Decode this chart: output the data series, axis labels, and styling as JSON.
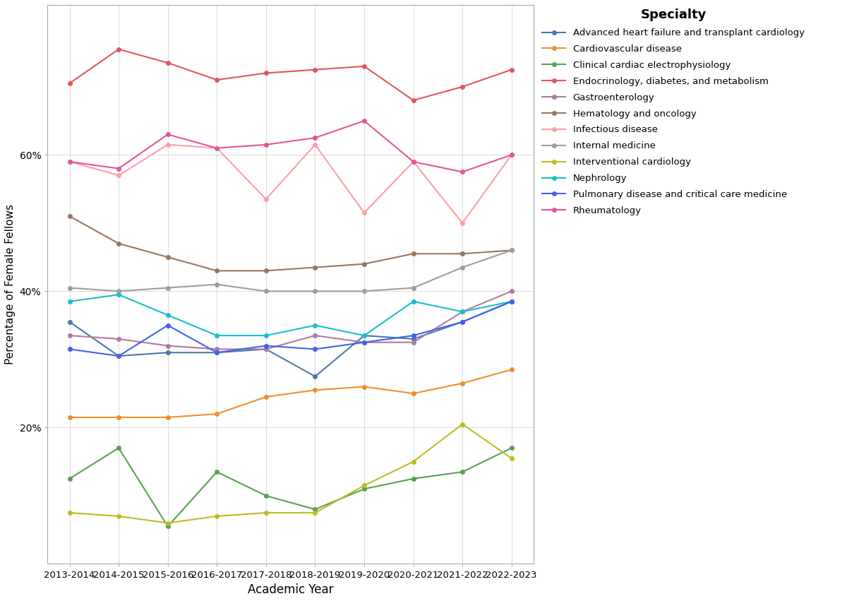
{
  "years": [
    "2013-2014",
    "2014-2015",
    "2015-2016",
    "2016-2017",
    "2017-2018",
    "2018-2019",
    "2019-2020",
    "2020-2021",
    "2021-2022",
    "2022-2023"
  ],
  "series": {
    "Advanced heart failure and transplant cardiology": {
      "color": "#4E79A7",
      "values": [
        35.5,
        30.5,
        31.0,
        31.0,
        31.5,
        27.5,
        33.5,
        33.0,
        35.5,
        38.5
      ]
    },
    "Cardiovascular disease": {
      "color": "#F28E2B",
      "values": [
        21.5,
        21.5,
        21.5,
        22.0,
        24.5,
        25.5,
        26.0,
        25.0,
        26.5,
        28.5
      ]
    },
    "Clinical cardiac electrophysiology": {
      "color": "#59A14F",
      "values": [
        12.5,
        17.0,
        5.5,
        13.5,
        10.0,
        8.0,
        11.0,
        12.5,
        13.5,
        17.0
      ]
    },
    "Endocrinology, diabetes, and metabolism": {
      "color": "#E15759",
      "values": [
        70.5,
        75.5,
        73.5,
        71.0,
        72.0,
        72.5,
        73.0,
        68.0,
        70.0,
        72.5
      ]
    },
    "Gastroenterology": {
      "color": "#B07AA1",
      "values": [
        33.5,
        33.0,
        32.0,
        31.5,
        31.5,
        33.5,
        32.5,
        32.5,
        37.0,
        40.0
      ]
    },
    "Hematology and oncology": {
      "color": "#9C755F",
      "values": [
        51.0,
        47.0,
        45.0,
        43.0,
        43.0,
        43.5,
        44.0,
        45.5,
        45.5,
        46.0
      ]
    },
    "Infectious disease": {
      "color": "#FF9DA7",
      "values": [
        59.0,
        57.0,
        61.5,
        61.0,
        53.5,
        61.5,
        51.5,
        59.0,
        50.0,
        60.0
      ]
    },
    "Internal medicine": {
      "color": "#9E9E9E",
      "values": [
        40.5,
        40.0,
        40.5,
        41.0,
        40.0,
        40.0,
        40.0,
        40.5,
        43.5,
        46.0
      ]
    },
    "Interventional cardiology": {
      "color": "#BCBD22",
      "values": [
        7.5,
        7.0,
        6.0,
        7.0,
        7.5,
        7.5,
        11.5,
        15.0,
        20.5,
        15.5
      ]
    },
    "Nephrology": {
      "color": "#17BECF",
      "values": [
        38.5,
        39.5,
        36.5,
        33.5,
        33.5,
        35.0,
        33.5,
        38.5,
        37.0,
        38.5
      ]
    },
    "Pulmonary disease and critical care medicine": {
      "color": "#4361EE",
      "values": [
        31.5,
        30.5,
        35.0,
        31.0,
        32.0,
        31.5,
        32.5,
        33.5,
        35.5,
        38.5
      ]
    },
    "Rheumatology": {
      "color": "#E15798",
      "values": [
        59.0,
        58.0,
        63.0,
        61.0,
        61.5,
        62.5,
        65.0,
        59.0,
        57.5,
        60.0
      ]
    }
  },
  "xlabel": "Academic Year",
  "ylabel": "Percentage of Female Fellows",
  "legend_title": "Specialty",
  "ytick_labels": [
    "20%",
    "40%",
    "60%"
  ],
  "ytick_values": [
    20,
    40,
    60
  ],
  "ymin": 0,
  "ymax": 82,
  "background_color": "#ffffff",
  "grid_color": "#dddddd",
  "plot_border_color": "#aaaaaa"
}
